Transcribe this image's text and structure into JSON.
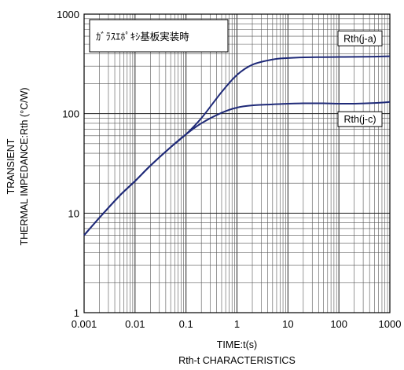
{
  "chart_data": {
    "type": "line",
    "title": "",
    "caption": "Rth-t CHARACTERISTICS",
    "xlabel": "TIME:t(s)",
    "ylabel_lines": [
      "TRANSIENT",
      "THERMAL IMPEDANCE:Rth (°C/W)"
    ],
    "x_scale": "log",
    "y_scale": "log",
    "xlim": [
      0.001,
      1000
    ],
    "ylim": [
      1,
      1000
    ],
    "x_tick_labels": [
      "0.001",
      "0.01",
      "0.1",
      "1",
      "10",
      "100",
      "1000"
    ],
    "y_tick_labels": [
      "1",
      "10",
      "100",
      "1000"
    ],
    "grid": true,
    "annotation_box": "ｶﾞﾗｽｴﾎﾟｷｼ基板実装時",
    "series": [
      {
        "name": "Rth(j-a)",
        "color": "#1f2a78",
        "x": [
          0.001,
          0.002,
          0.005,
          0.01,
          0.02,
          0.05,
          0.1,
          0.2,
          0.5,
          1,
          2,
          5,
          10,
          20,
          50,
          100,
          200,
          500,
          1000
        ],
        "y": [
          6,
          9,
          15,
          21,
          30,
          46,
          62,
          90,
          165,
          245,
          310,
          350,
          362,
          368,
          370,
          371,
          372,
          374,
          377
        ]
      },
      {
        "name": "Rth(j-c)",
        "color": "#1f2a78",
        "x": [
          0.001,
          0.002,
          0.005,
          0.01,
          0.02,
          0.05,
          0.1,
          0.2,
          0.5,
          1,
          2,
          5,
          10,
          20,
          50,
          100,
          200,
          500,
          1000
        ],
        "y": [
          6,
          9,
          15,
          21,
          30,
          46,
          62,
          80,
          102,
          115,
          121,
          124,
          126,
          127,
          127,
          126,
          126,
          128,
          131
        ]
      }
    ]
  }
}
